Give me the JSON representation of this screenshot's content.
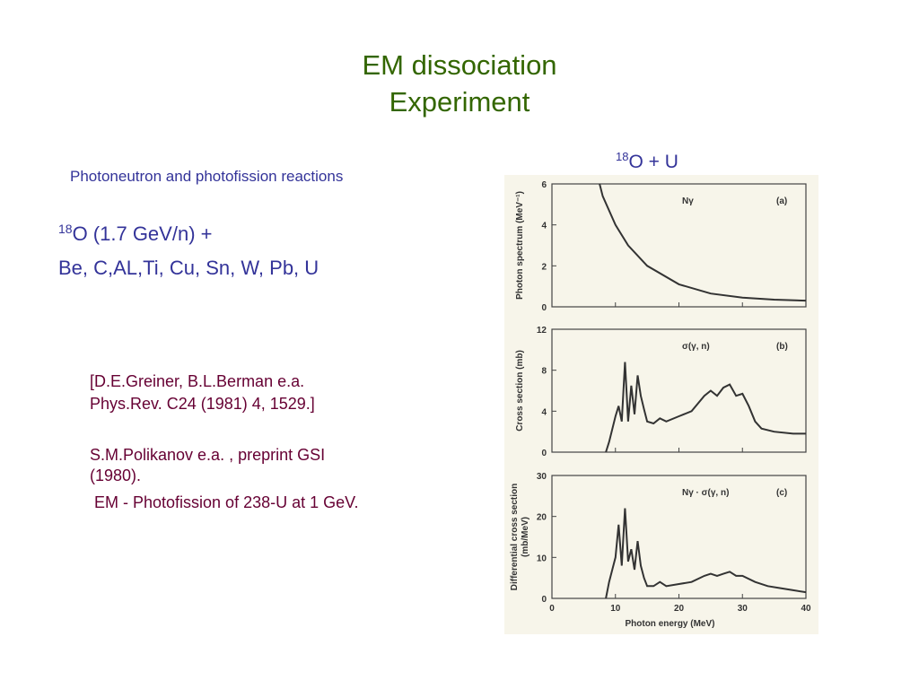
{
  "slide": {
    "title": [
      "EM dissociation",
      "Experiment"
    ],
    "subtitle": "Photoneutron and photofission reactions",
    "reaction": {
      "sup": "18",
      "text": "O (1.7 GeV/n) +"
    },
    "targets": "Be, C,AL,Ti, Cu, Sn, W, Pb, U",
    "references": [
      [
        "[D.E.Greiner, B.L.Berman e.a.",
        "Phys.Rev. C24 (1981) 4, 1529.]"
      ],
      [
        "S.M.Polikanov e.a. , preprint GSI",
        "(1980)."
      ],
      [
        "EM - Photofission of 238-U at 1 GeV."
      ]
    ],
    "figure_title": {
      "sup": "18",
      "text": "O + U"
    }
  },
  "figure": {
    "xlabel": "Photon energy (MeV)",
    "xlim": [
      0,
      40
    ],
    "xticks": [
      0,
      10,
      20,
      30,
      40
    ],
    "panels": [
      {
        "ylabel": [
          "Photon spectrum (MeV⁻¹)"
        ],
        "annotation": "Nγ",
        "tag": "(a)",
        "ylim": [
          0,
          6
        ],
        "yticks": [
          0,
          2,
          4,
          6
        ],
        "x": [
          7.5,
          8,
          10,
          12,
          15,
          20,
          25,
          30,
          35,
          40
        ],
        "y": [
          6,
          5.4,
          4.0,
          3.0,
          2.0,
          1.1,
          0.65,
          0.45,
          0.35,
          0.3
        ]
      },
      {
        "ylabel": [
          "Cross section (mb)"
        ],
        "annotation": "σ(γ, n)",
        "tag": "(b)",
        "ylim": [
          0,
          12
        ],
        "yticks": [
          0,
          4,
          8,
          12
        ],
        "x": [
          8.5,
          9,
          10,
          10.5,
          11,
          11.5,
          12,
          12.5,
          13,
          13.5,
          14,
          14.5,
          15,
          16,
          17,
          18,
          20,
          22,
          24,
          25,
          26,
          27,
          28,
          29,
          30,
          31,
          32,
          33,
          35,
          38,
          40
        ],
        "y": [
          0,
          1,
          3.5,
          4.5,
          3,
          8.8,
          3,
          6.5,
          3.7,
          7.5,
          5.5,
          4.2,
          3,
          2.8,
          3.3,
          3,
          3.5,
          4,
          5.5,
          6,
          5.5,
          6.3,
          6.6,
          5.5,
          5.7,
          4.5,
          3,
          2.3,
          2,
          1.8,
          1.8
        ]
      },
      {
        "ylabel": [
          "Differential cross section",
          "(mb/MeV)"
        ],
        "annotation": "Nγ · σ(γ, n)",
        "tag": "(c)",
        "ylim": [
          0,
          30
        ],
        "yticks": [
          0,
          10,
          20,
          30
        ],
        "x": [
          8.5,
          9,
          10,
          10.5,
          11,
          11.5,
          12,
          12.5,
          13,
          13.5,
          14,
          14.5,
          15,
          16,
          17,
          18,
          20,
          22,
          24,
          25,
          26,
          27,
          28,
          29,
          30,
          32,
          34,
          36,
          38,
          40
        ],
        "y": [
          0,
          4,
          10,
          18,
          8,
          22,
          9,
          12,
          7,
          14,
          8,
          5,
          3,
          3,
          4,
          3,
          3.5,
          4,
          5.5,
          6,
          5.5,
          6,
          6.5,
          5.5,
          5.5,
          4,
          3,
          2.5,
          2,
          1.5
        ]
      }
    ]
  }
}
